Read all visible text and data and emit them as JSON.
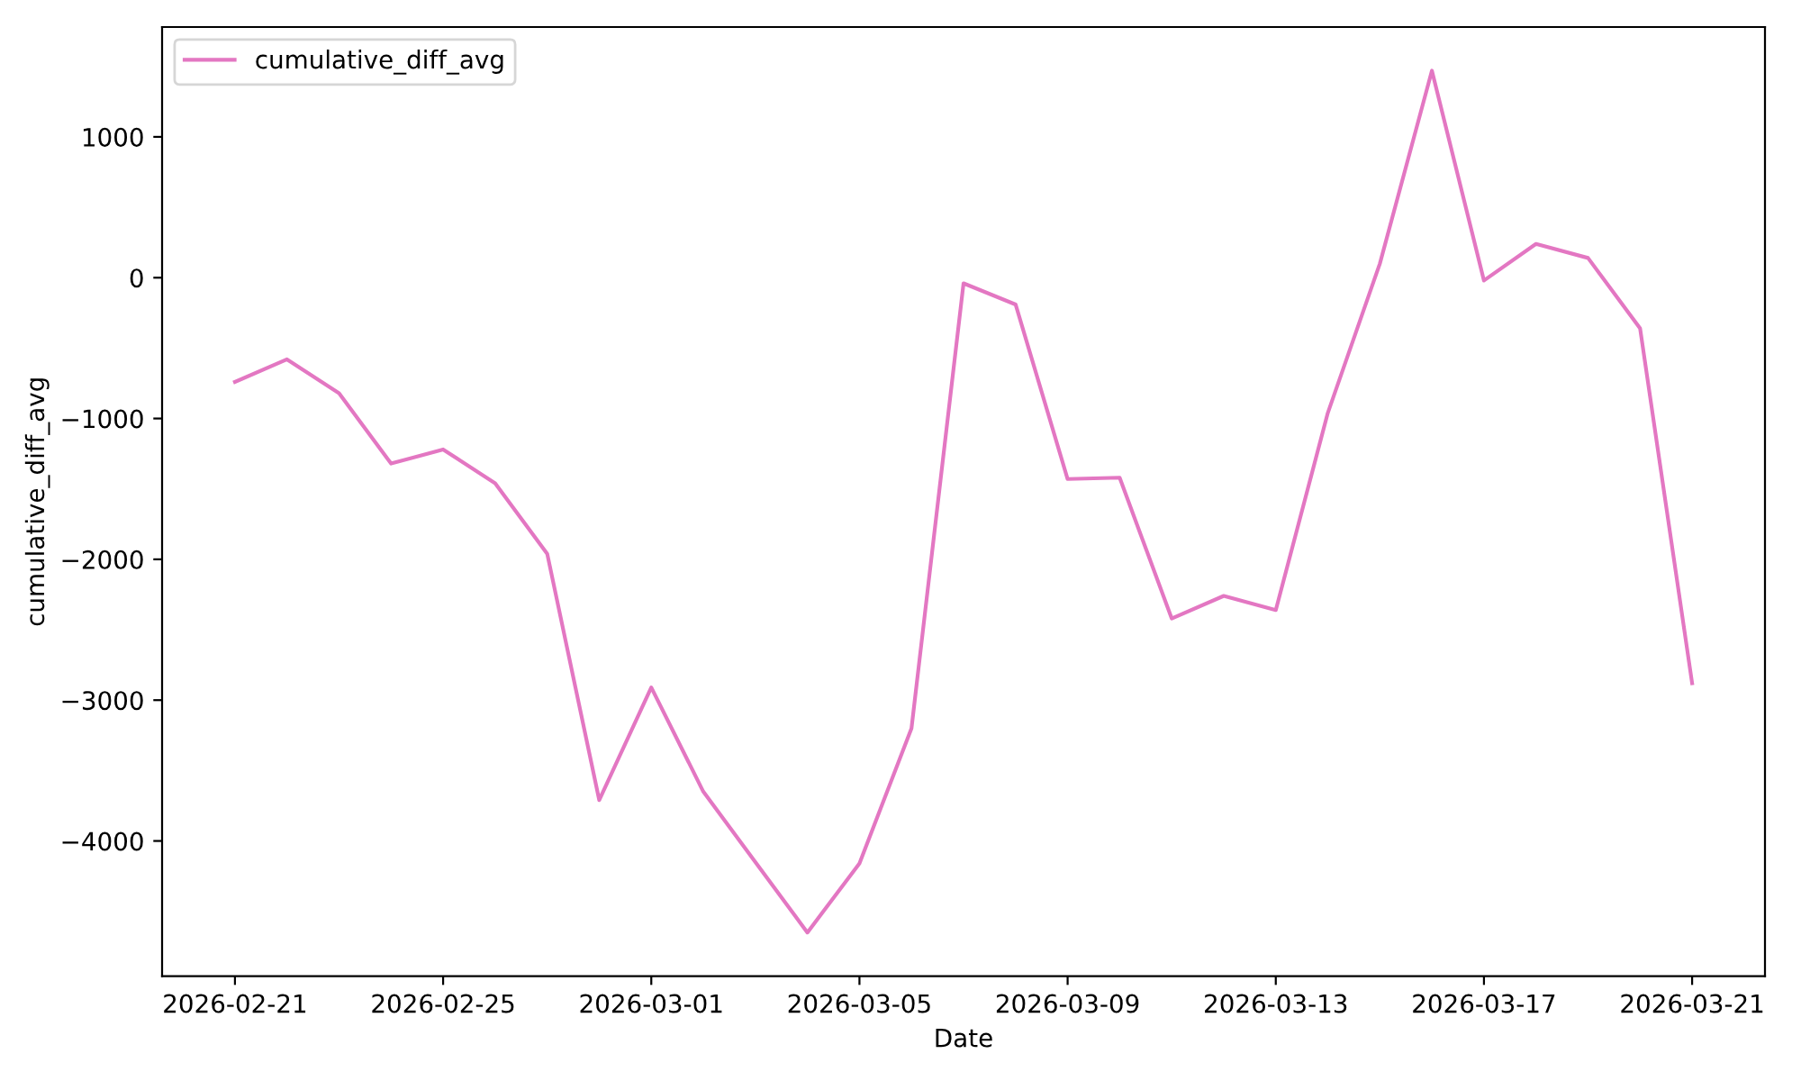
{
  "chart_data": {
    "type": "line",
    "xlabel": "Date",
    "ylabel": "cumulative_diff_avg",
    "x": [
      "2026-02-21",
      "2026-02-22",
      "2026-02-23",
      "2026-02-24",
      "2026-02-25",
      "2026-02-26",
      "2026-02-27",
      "2026-02-28",
      "2026-03-01",
      "2026-03-02",
      "2026-03-03",
      "2026-03-04",
      "2026-03-05",
      "2026-03-06",
      "2026-03-07",
      "2026-03-08",
      "2026-03-09",
      "2026-03-10",
      "2026-03-11",
      "2026-03-12",
      "2026-03-13",
      "2026-03-14",
      "2026-03-15",
      "2026-03-16",
      "2026-03-17",
      "2026-03-18",
      "2026-03-19",
      "2026-03-20",
      "2026-03-21"
    ],
    "series": [
      {
        "name": "cumulative_diff_avg",
        "color": "#e377c2",
        "values": [
          -740,
          -580,
          -820,
          -1320,
          -1220,
          -1460,
          -1960,
          -3710,
          -2910,
          -3650,
          -4150,
          -4650,
          -4160,
          -3200,
          -40,
          -190,
          -1430,
          -1420,
          -2420,
          -2260,
          -2360,
          -960,
          100,
          1470,
          -20,
          240,
          140,
          -360,
          -2880
        ]
      }
    ],
    "xlim": [
      "2026-02-19T14:24",
      "2026-03-22T09:36"
    ],
    "xticks": [
      "2026-02-21",
      "2026-02-25",
      "2026-03-01",
      "2026-03-05",
      "2026-03-09",
      "2026-03-13",
      "2026-03-17",
      "2026-03-21"
    ],
    "ylim": [
      -4960,
      1780
    ],
    "yticks": [
      {
        "value": -4000,
        "label": "−4000"
      },
      {
        "value": -3000,
        "label": "−3000"
      },
      {
        "value": -2000,
        "label": "−2000"
      },
      {
        "value": -1000,
        "label": "−1000"
      },
      0,
      1000
    ],
    "legend": "top left",
    "grid": false,
    "marker": "none",
    "line_style": "solid"
  }
}
